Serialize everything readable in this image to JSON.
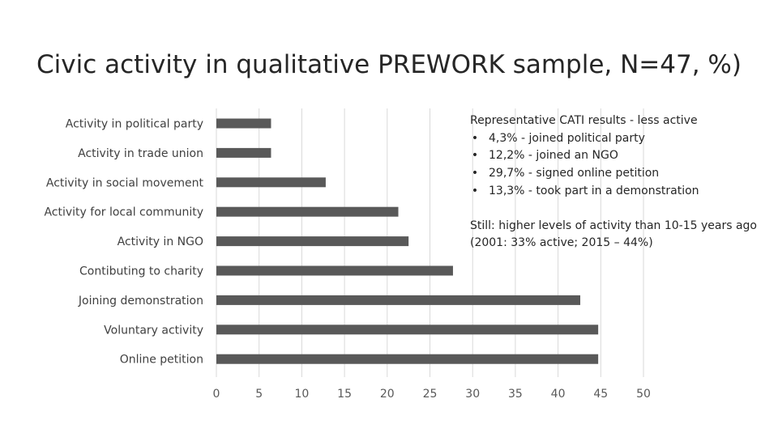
{
  "title": "Civic activity in qualitative PREWORK sample, N=47, %)",
  "chart_data": {
    "type": "bar",
    "orientation": "horizontal",
    "categories": [
      "Activity in political party",
      "Activity in trade union",
      "Activity in social movement",
      "Activity for local community",
      "Activity in NGO",
      "Contibuting to charity",
      "Joining demonstration",
      "Voluntary activity",
      "Online petition"
    ],
    "values": [
      6.4,
      6.4,
      12.8,
      21.3,
      22.5,
      27.7,
      42.6,
      44.7,
      44.7
    ],
    "xlim": [
      0,
      50
    ],
    "xticks": [
      "0",
      "5",
      "10",
      "15",
      "20",
      "25",
      "30",
      "35",
      "40",
      "45",
      "50"
    ],
    "grid": true,
    "bar_color": "#595959",
    "grid_color": "#d9d9d9"
  },
  "notes": {
    "heading": "Representative CATI results -  less active",
    "bullet_glyph": "•",
    "bullets": [
      "4,3% - joined political party",
      "12,2% - joined an NGO",
      "29,7% - signed online petition",
      "13,3% - took part in a demonstration"
    ],
    "line1": "Still: higher levels of activity than 10-15 years ago",
    "line2": "(2001: 33% active; 2015 – 44%)"
  }
}
